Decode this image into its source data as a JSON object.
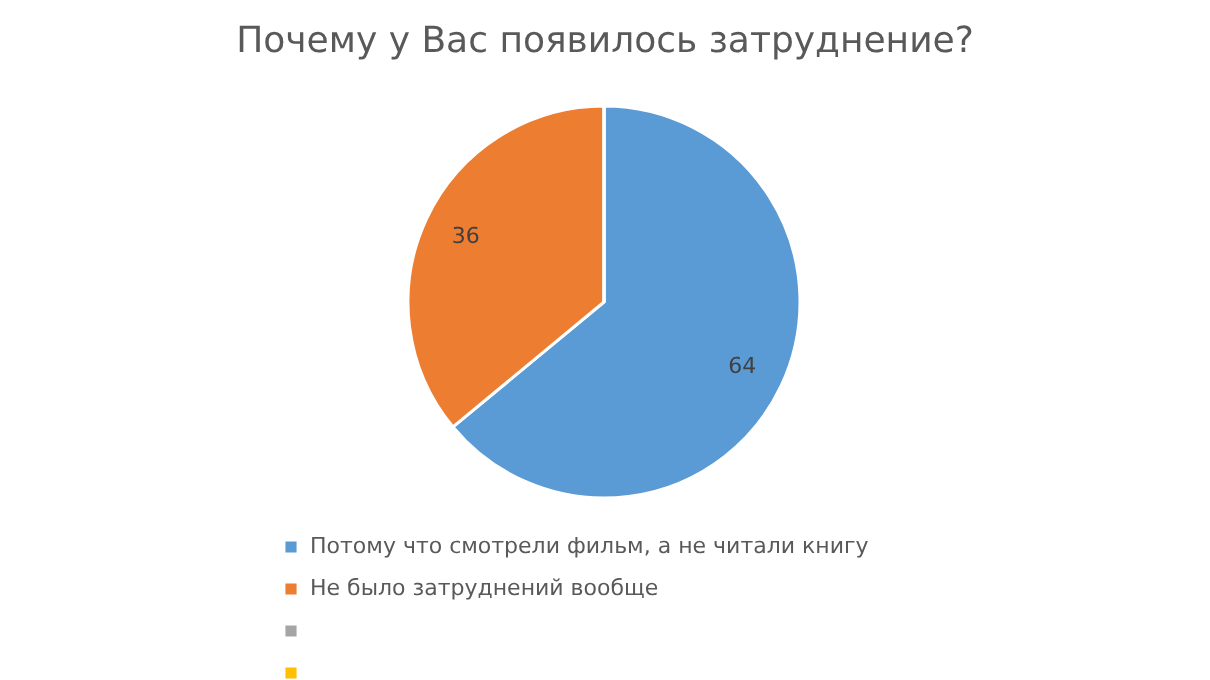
{
  "chart_data": {
    "type": "pie",
    "title": "Почему у Вас появилось затруднение?",
    "categories": [
      "Потому что смотрели фильм, а не читали книгу",
      "Не было затруднений вообще",
      null,
      null
    ],
    "values": [
      64,
      36,
      0,
      0
    ],
    "value_labels": [
      "64",
      "36",
      null,
      null
    ],
    "colors": [
      "#5b9bd5",
      "#ed7d31",
      "#a5a5a5",
      "#ffc000"
    ],
    "legend": "bottom"
  }
}
